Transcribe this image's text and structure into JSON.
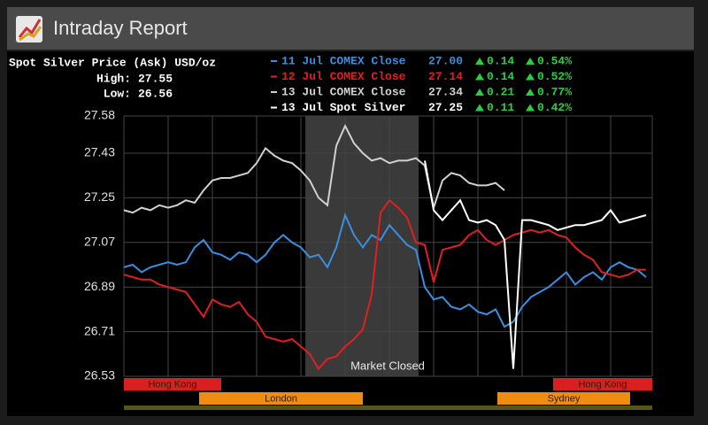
{
  "header": {
    "title": "Intraday Report"
  },
  "chart_data": {
    "type": "line",
    "title": "Spot Silver Price (Ask) USD/oz",
    "stats": [
      {
        "label": "High:",
        "value": 27.55
      },
      {
        "label": "Low:",
        "value": 26.56
      }
    ],
    "ylim": [
      26.53,
      27.58
    ],
    "yticks": [
      27.58,
      27.43,
      27.25,
      27.07,
      26.89,
      26.71,
      26.53
    ],
    "grid": true,
    "annotation": "Market Closed",
    "sessions": [
      "Hong Kong",
      "London",
      "Sydney",
      "Hong Kong"
    ],
    "series": [
      {
        "name": "11 Jul COMEX Close",
        "color": "#3a8fe0",
        "close": 27,
        "close_label": "27.00",
        "change": 0.14,
        "change_pct": 0.54,
        "change_pct_label": "0.54%",
        "values": [
          26.97,
          26.98,
          26.95,
          26.97,
          26.98,
          26.99,
          26.98,
          26.99,
          27.05,
          27.08,
          27.03,
          27.02,
          27.0,
          27.03,
          27.02,
          26.99,
          27.02,
          27.07,
          27.1,
          27.07,
          27.05,
          27.01,
          27.02,
          26.97,
          27.05,
          27.18,
          27.1,
          27.05,
          27.1,
          27.08,
          27.14,
          27.1,
          27.06,
          27.04,
          26.89,
          26.84,
          26.85,
          26.81,
          26.8,
          26.82,
          26.79,
          26.78,
          26.8,
          26.73,
          26.75,
          26.81,
          26.85,
          26.87,
          26.89,
          26.92,
          26.95,
          26.9,
          26.93,
          26.95,
          26.92,
          26.97,
          26.99,
          26.97,
          26.96,
          26.93
        ]
      },
      {
        "name": "12 Jul COMEX Close",
        "color": "#e02020",
        "close": 27.14,
        "change": 0.14,
        "change_pct": 0.52,
        "change_pct_label": "0.52%",
        "values": [
          26.94,
          26.93,
          26.92,
          26.92,
          26.9,
          26.89,
          26.88,
          26.87,
          26.82,
          26.77,
          26.84,
          26.82,
          26.81,
          26.83,
          26.78,
          26.75,
          26.69,
          26.68,
          26.67,
          26.68,
          26.65,
          26.62,
          26.56,
          26.6,
          26.61,
          26.65,
          26.68,
          26.72,
          26.86,
          27.19,
          27.24,
          27.21,
          27.17,
          27.07,
          27.06,
          26.91,
          27.04,
          27.05,
          27.06,
          27.1,
          27.12,
          27.08,
          27.06,
          27.08,
          27.1,
          27.11,
          27.12,
          27.11,
          27.12,
          27.1,
          27.09,
          27.05,
          27.02,
          27.0,
          26.95,
          26.94,
          26.93,
          26.94,
          26.96,
          26.96
        ]
      },
      {
        "name": "13 Jul COMEX Close",
        "color": "#d0d0d0",
        "close": 27.34,
        "change": 0.21,
        "change_pct": 0.77,
        "change_pct_label": "0.77%",
        "values": [
          27.2,
          27.19,
          27.21,
          27.2,
          27.22,
          27.21,
          27.22,
          27.24,
          27.23,
          27.28,
          27.32,
          27.33,
          27.33,
          27.34,
          27.35,
          27.39,
          27.45,
          27.42,
          27.4,
          27.39,
          27.36,
          27.32,
          27.25,
          27.22,
          27.46,
          27.54,
          27.47,
          27.43,
          27.4,
          27.41,
          27.39,
          27.4,
          27.4,
          27.41,
          27.38,
          27.21,
          27.32,
          27.35,
          27.34,
          27.31,
          27.3,
          27.3,
          27.31,
          27.28,
          null,
          null,
          null,
          null,
          null,
          null,
          null,
          null,
          null,
          null,
          null,
          null,
          null,
          null,
          null,
          null
        ]
      },
      {
        "name": "13 Jul Spot Silver",
        "color": "#ffffff",
        "close": 27.25,
        "change": 0.11,
        "change_pct": 0.42,
        "change_pct_label": "0.42%",
        "values": [
          null,
          null,
          null,
          null,
          null,
          null,
          null,
          null,
          null,
          null,
          null,
          null,
          null,
          null,
          null,
          null,
          null,
          null,
          null,
          null,
          null,
          null,
          null,
          null,
          null,
          null,
          null,
          null,
          null,
          null,
          null,
          null,
          null,
          null,
          27.4,
          27.2,
          27.16,
          27.2,
          27.24,
          27.16,
          27.15,
          27.16,
          27.14,
          27.08,
          26.56,
          27.16,
          27.16,
          27.15,
          27.14,
          27.12,
          27.13,
          27.14,
          27.14,
          27.15,
          27.16,
          27.2,
          27.15,
          27.16,
          27.17,
          27.18
        ]
      }
    ]
  }
}
